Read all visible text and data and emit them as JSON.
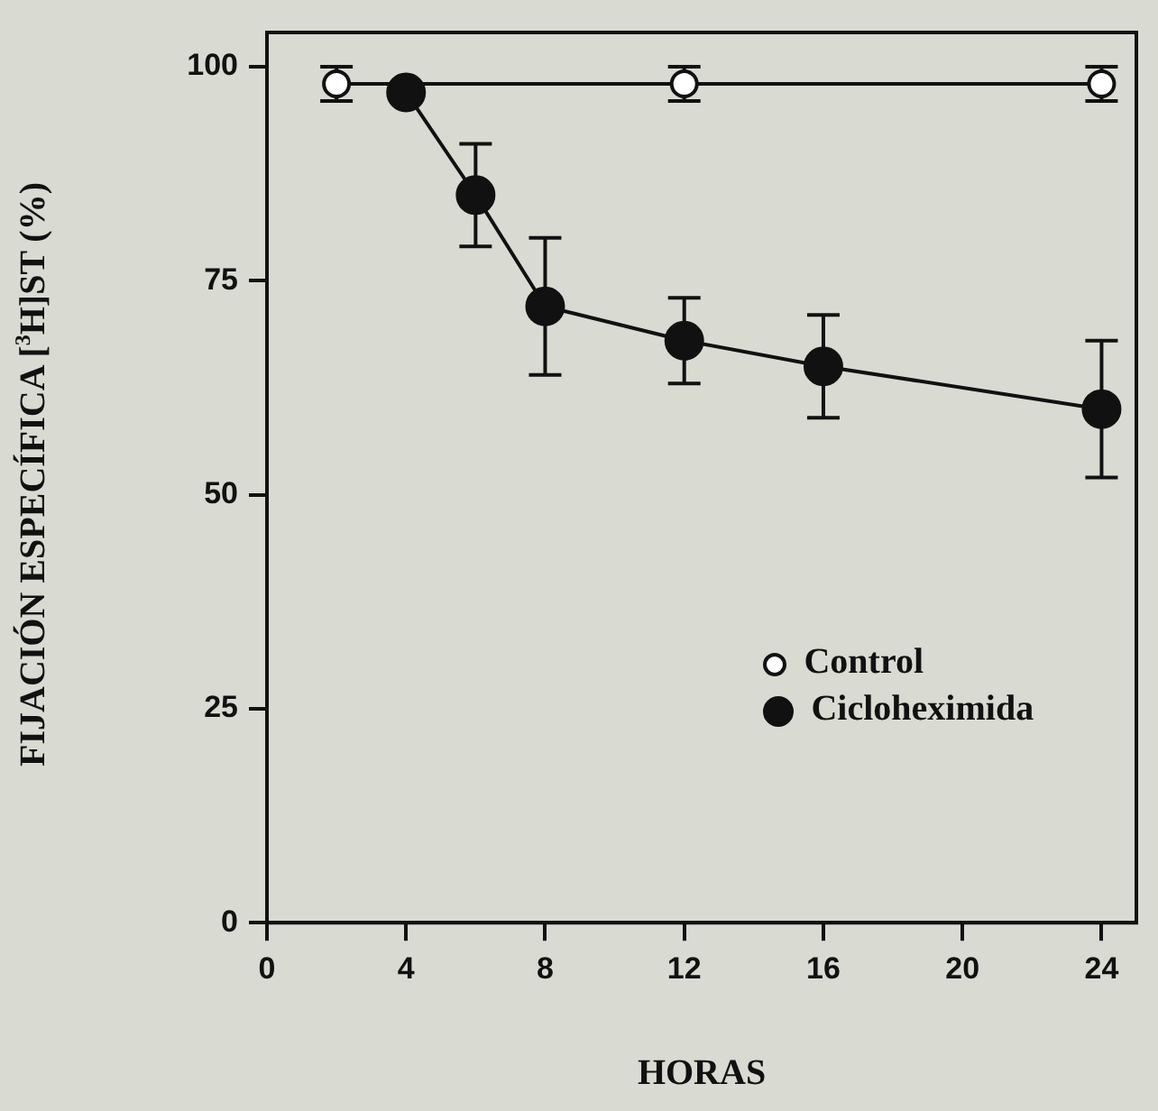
{
  "chart_data": {
    "type": "line",
    "xlabel": "HORAS",
    "ylabel": "FIJACIÓN ESPECÍFICA [$^{3}$H]ST (%)",
    "xlim": [
      0,
      25
    ],
    "xticks": [
      0,
      4,
      8,
      12,
      16,
      20,
      24
    ],
    "ylim": [
      0,
      104
    ],
    "yticks": [
      0,
      25,
      50,
      75,
      100
    ],
    "grid": false,
    "legend": "right",
    "marker": "circle",
    "line_style": "solid",
    "series": [
      {
        "name": "Control",
        "color": "#ffffff",
        "x": [
          2,
          12,
          24
        ],
        "values": [
          98,
          98,
          98
        ],
        "errors": [
          2,
          2,
          2
        ]
      },
      {
        "name": "Cicloheximida",
        "color": "#111111",
        "x": [
          4,
          6,
          8,
          12,
          16,
          24
        ],
        "values": [
          97,
          85,
          72,
          68,
          65,
          60
        ],
        "errors": [
          null,
          6,
          8,
          5,
          6,
          8
        ]
      }
    ]
  }
}
